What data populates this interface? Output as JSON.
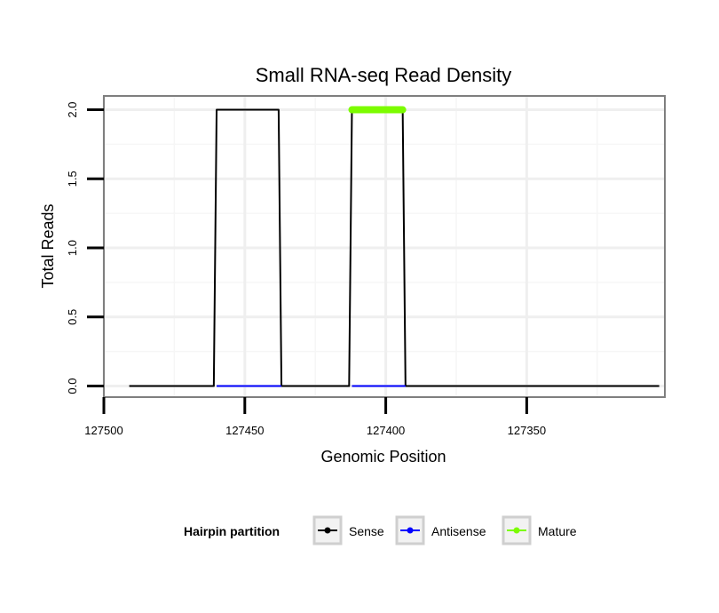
{
  "chart_data": {
    "type": "line",
    "title": "Small RNA-seq Read Density",
    "xlabel": "Genomic Position",
    "ylabel": "Total Reads",
    "x_reversed": true,
    "xlim": [
      127500,
      127301
    ],
    "ylim": [
      -0.08,
      2.1
    ],
    "x_ticks": [
      127500,
      127450,
      127400,
      127350
    ],
    "x_tick_labels": [
      "127500",
      "127450",
      "127400",
      "127350"
    ],
    "y_ticks": [
      0.0,
      0.5,
      1.0,
      1.5,
      2.0
    ],
    "y_tick_labels": [
      "0.0",
      "0.5",
      "1.0",
      "1.5",
      "2.0"
    ],
    "grid": true,
    "legend_position": "bottom",
    "legend_title": "Hairpin partition",
    "series": [
      {
        "name": "Sense",
        "color": "#000000",
        "x": [
          127491,
          127461,
          127460,
          127438,
          127437,
          127413,
          127412,
          127394,
          127393,
          127303
        ],
        "y": [
          0,
          0,
          2,
          2,
          0,
          0,
          2,
          2,
          0,
          0
        ]
      },
      {
        "name": "Antisense",
        "color": "#0000ff",
        "x": [
          127460,
          127437,
          127412,
          127393
        ],
        "y": [
          0,
          0,
          0,
          0
        ],
        "segments": [
          [
            0,
            1
          ],
          [
            2,
            3
          ]
        ]
      },
      {
        "name": "Mature",
        "color": "#7cfc00",
        "x": [
          127412,
          127394
        ],
        "y": [
          2,
          2
        ]
      }
    ]
  }
}
